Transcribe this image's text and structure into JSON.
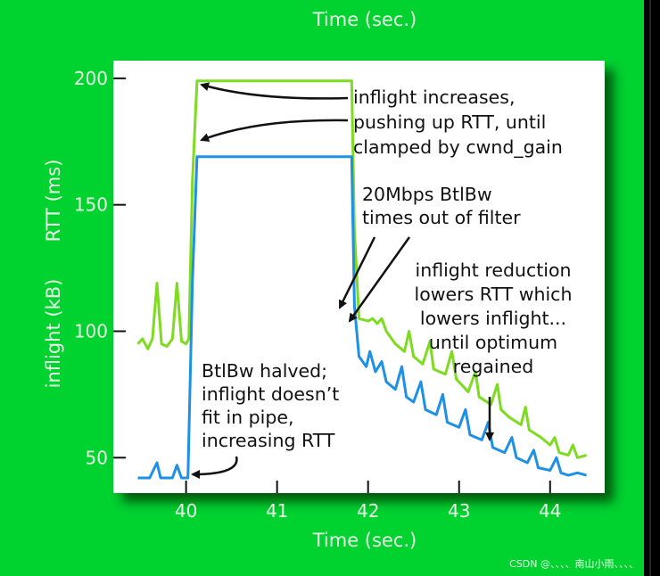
{
  "top_label": "Time (sec.)",
  "watermark": "CSDN @、、、、南山小雨、、、、",
  "colors": {
    "background": "#00d230",
    "rtt": "#7ddc1f",
    "inflight": "#1e90e6",
    "plot": "#ffffff"
  },
  "chart_data": {
    "type": "line",
    "xlabel": "Time (sec.)",
    "ylabels": [
      "RTT (ms)",
      "inflight (kB)"
    ],
    "xlim": [
      39.2,
      44.6
    ],
    "ylim": [
      36,
      207
    ],
    "xticks": [
      40,
      41,
      42,
      43,
      44
    ],
    "yticks": [
      50,
      100,
      150,
      200
    ],
    "grid": false,
    "series": [
      {
        "name": "RTT (ms)",
        "color": "#7ddc1f",
        "points": [
          [
            39.47,
            95
          ],
          [
            39.52,
            97
          ],
          [
            39.58,
            93
          ],
          [
            39.63,
            97
          ],
          [
            39.68,
            119
          ],
          [
            39.73,
            95
          ],
          [
            39.79,
            94
          ],
          [
            39.85,
            97
          ],
          [
            39.9,
            119
          ],
          [
            39.95,
            96
          ],
          [
            40.0,
            95
          ],
          [
            40.03,
            97
          ],
          [
            40.07,
            160
          ],
          [
            40.12,
            199
          ],
          [
            41.82,
            199
          ],
          [
            41.85,
            140
          ],
          [
            41.9,
            105
          ],
          [
            42.0,
            104
          ],
          [
            42.05,
            105
          ],
          [
            42.1,
            103
          ],
          [
            42.15,
            105
          ],
          [
            42.2,
            100
          ],
          [
            42.3,
            95
          ],
          [
            42.4,
            92
          ],
          [
            42.45,
            100
          ],
          [
            42.5,
            90
          ],
          [
            42.6,
            87
          ],
          [
            42.68,
            96
          ],
          [
            42.72,
            85
          ],
          [
            42.85,
            83
          ],
          [
            42.92,
            92
          ],
          [
            42.97,
            81
          ],
          [
            43.05,
            78
          ],
          [
            43.1,
            76
          ],
          [
            43.18,
            84
          ],
          [
            43.22,
            74
          ],
          [
            43.35,
            71
          ],
          [
            43.42,
            79
          ],
          [
            43.46,
            69
          ],
          [
            43.55,
            66
          ],
          [
            43.68,
            63
          ],
          [
            43.73,
            70
          ],
          [
            43.77,
            61
          ],
          [
            43.9,
            58
          ],
          [
            44.0,
            55
          ],
          [
            44.05,
            58
          ],
          [
            44.1,
            52
          ],
          [
            44.2,
            51
          ],
          [
            44.25,
            55
          ],
          [
            44.3,
            50
          ],
          [
            44.4,
            51
          ]
        ]
      },
      {
        "name": "inflight (kB)",
        "color": "#1e90e6",
        "points": [
          [
            39.47,
            42
          ],
          [
            39.6,
            42
          ],
          [
            39.68,
            48
          ],
          [
            39.72,
            42
          ],
          [
            39.85,
            42
          ],
          [
            39.9,
            47
          ],
          [
            39.95,
            42
          ],
          [
            40.02,
            42
          ],
          [
            40.07,
            120
          ],
          [
            40.12,
            169
          ],
          [
            41.82,
            169
          ],
          [
            41.85,
            110
          ],
          [
            41.9,
            90
          ],
          [
            41.98,
            86
          ],
          [
            42.02,
            92
          ],
          [
            42.08,
            84
          ],
          [
            42.15,
            88
          ],
          [
            42.2,
            80
          ],
          [
            42.3,
            77
          ],
          [
            42.37,
            86
          ],
          [
            42.42,
            74
          ],
          [
            42.5,
            72
          ],
          [
            42.58,
            80
          ],
          [
            42.63,
            69
          ],
          [
            42.75,
            67
          ],
          [
            42.82,
            75
          ],
          [
            42.87,
            64
          ],
          [
            43.0,
            62
          ],
          [
            43.07,
            69
          ],
          [
            43.12,
            59
          ],
          [
            43.25,
            57
          ],
          [
            43.32,
            64
          ],
          [
            43.37,
            54
          ],
          [
            43.5,
            52
          ],
          [
            43.58,
            58
          ],
          [
            43.63,
            50
          ],
          [
            43.75,
            48
          ],
          [
            43.82,
            53
          ],
          [
            43.87,
            46
          ],
          [
            44.0,
            45
          ],
          [
            44.07,
            50
          ],
          [
            44.12,
            44
          ],
          [
            44.2,
            43
          ],
          [
            44.3,
            44
          ],
          [
            44.4,
            43
          ]
        ]
      }
    ],
    "annotations": [
      {
        "lines": [
          "inflight increases,",
          "pushing up RTT, until",
          "clamped by cwnd_gain"
        ]
      },
      {
        "lines": [
          "20Mbps BtlBw",
          "times out of filter"
        ]
      },
      {
        "lines": [
          "inflight reduction",
          "lowers RTT which",
          "lowers inflight...",
          "until optimum",
          "regained"
        ]
      },
      {
        "lines": [
          "BtlBw halved;",
          "inflight doesn’t",
          "fit in pipe,",
          "increasing RTT"
        ]
      }
    ]
  }
}
